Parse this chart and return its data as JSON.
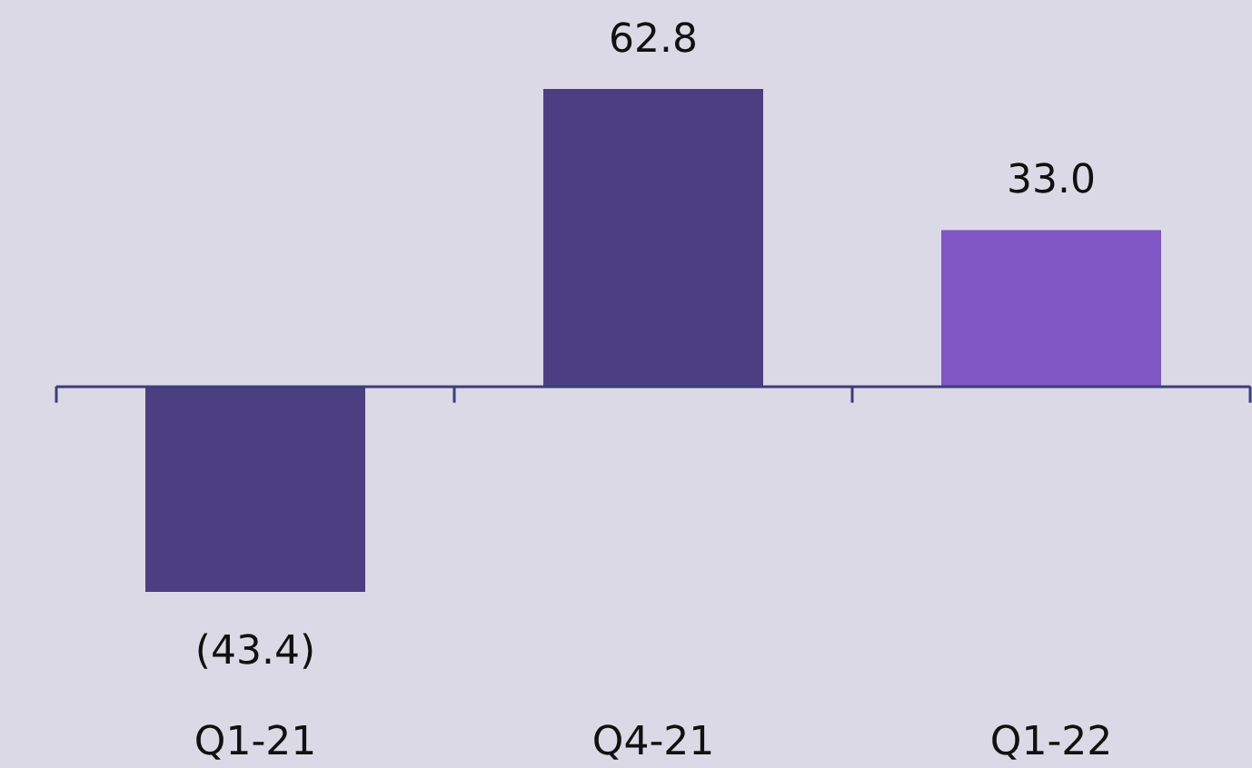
{
  "chart_data": {
    "type": "bar",
    "categories": [
      "Q1-21",
      "Q4-21",
      "Q1-22"
    ],
    "values": [
      -43.4,
      62.8,
      33.0
    ],
    "colors": [
      "#4b3f81",
      "#4b3f81",
      "#7f56c3"
    ],
    "value_labels": [
      "(43.4)",
      "62.8",
      "33.0"
    ],
    "ref_lines": [
      {
        "axis": "y",
        "value": 0,
        "color": "#3a3f7a"
      }
    ]
  }
}
